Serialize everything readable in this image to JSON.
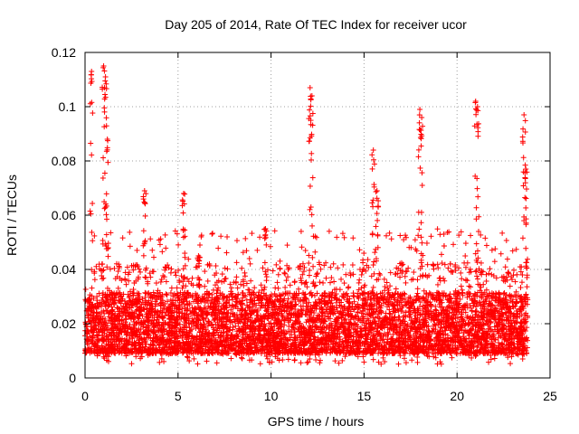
{
  "chart_data": {
    "type": "scatter",
    "title": "Day 205 of 2014, Rate Of TEC Index for receiver ucor",
    "xlabel": "GPS time / hours",
    "ylabel": "ROTI / TECUs",
    "xlim": [
      0,
      25
    ],
    "ylim": [
      0,
      0.12
    ],
    "x_ticks": [
      0,
      5,
      10,
      15,
      20,
      25
    ],
    "x_tick_labels": [
      "0",
      "5",
      "10",
      "15",
      "20",
      "25"
    ],
    "y_ticks": [
      0,
      0.02,
      0.04,
      0.06,
      0.08,
      0.1,
      0.12
    ],
    "y_tick_labels": [
      "0",
      "0.02",
      "0.04",
      "0.06",
      "0.08",
      "0.1",
      "0.12"
    ],
    "grid": true,
    "marker": "plus",
    "color": "#ff0000",
    "series": [
      {
        "name": "ROTI",
        "data_extent_x": [
          0.0,
          23.8
        ],
        "typical_range_y": [
          0.005,
          0.035
        ],
        "peaks": [
          {
            "x": 0.35,
            "y": 0.113
          },
          {
            "x": 1.0,
            "y": 0.115
          },
          {
            "x": 1.1,
            "y": 0.111
          },
          {
            "x": 1.2,
            "y": 0.088
          },
          {
            "x": 3.2,
            "y": 0.069
          },
          {
            "x": 5.3,
            "y": 0.068
          },
          {
            "x": 6.1,
            "y": 0.045
          },
          {
            "x": 9.7,
            "y": 0.055
          },
          {
            "x": 12.1,
            "y": 0.107
          },
          {
            "x": 12.2,
            "y": 0.104
          },
          {
            "x": 15.5,
            "y": 0.084
          },
          {
            "x": 15.7,
            "y": 0.069
          },
          {
            "x": 18.0,
            "y": 0.099
          },
          {
            "x": 18.1,
            "y": 0.096
          },
          {
            "x": 21.0,
            "y": 0.102
          },
          {
            "x": 21.1,
            "y": 0.1
          },
          {
            "x": 23.6,
            "y": 0.097
          },
          {
            "x": 23.7,
            "y": 0.077
          }
        ]
      }
    ]
  }
}
